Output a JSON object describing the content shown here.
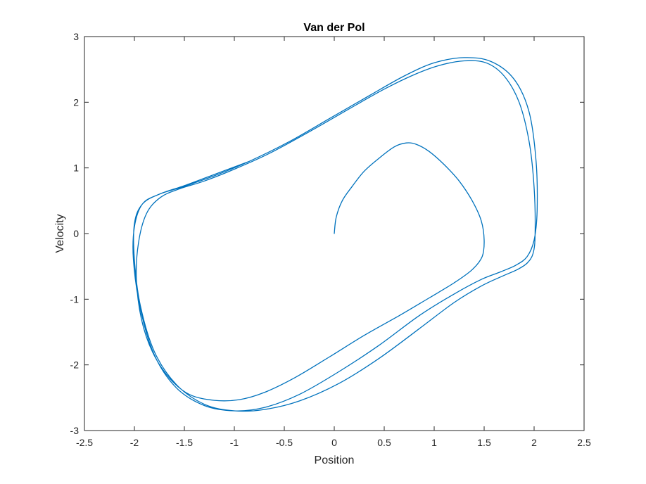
{
  "chart_data": {
    "type": "line",
    "title": "Van der Pol",
    "xlabel": "Position",
    "ylabel": "Velocity",
    "xlim": [
      -2.5,
      2.5
    ],
    "ylim": [
      -3,
      3
    ],
    "x_ticks": [
      -2.5,
      -2,
      -1.5,
      -1,
      -0.5,
      0,
      0.5,
      1,
      1.5,
      2,
      2.5
    ],
    "x_tick_labels": [
      "-2.5",
      "-2",
      "-1.5",
      "-1",
      "-0.5",
      "0",
      "0.5",
      "1",
      "1.5",
      "2",
      "2.5"
    ],
    "y_ticks": [
      -3,
      -2,
      -1,
      0,
      1,
      2,
      3
    ],
    "y_tick_labels": [
      "-3",
      "-2",
      "-1",
      "0",
      "1",
      "2",
      "3"
    ],
    "grid": false,
    "box": true,
    "series_color": "#0072BD",
    "series": [
      {
        "x": [
          0,
          0.02,
          0.08,
          0.18,
          0.3,
          0.45,
          0.6,
          0.72,
          0.82,
          0.95,
          1.1,
          1.25,
          1.38,
          1.47,
          1.5,
          1.48,
          1.38,
          1.2,
          0.95,
          0.65,
          0.3,
          -0.05,
          -0.4,
          -0.7,
          -0.95,
          -1.2,
          -1.45,
          -1.65,
          -1.82,
          -1.93,
          -1.98,
          -1.96,
          -1.88,
          -1.74,
          -1.55,
          -1.3,
          -1.0,
          -0.65,
          -0.25,
          0.15,
          0.5,
          0.8,
          1.05,
          1.3,
          1.52,
          1.7,
          1.85,
          1.95,
          2.0,
          2.01,
          1.99,
          1.93,
          1.83,
          1.68,
          1.47,
          1.2,
          0.85,
          0.45,
          0.05,
          -0.35,
          -0.7,
          -1.0,
          -1.3,
          -1.58,
          -1.8,
          -1.94,
          -2.0,
          -2.0,
          -1.92,
          -1.75,
          -1.5,
          -1.2,
          -0.85,
          -0.45,
          -0.05,
          0.35,
          0.7,
          1.0,
          1.3,
          1.57,
          1.8,
          1.95,
          2.02,
          2.03,
          2.0,
          1.93,
          1.82,
          1.67,
          1.47,
          1.2,
          0.85,
          0.45,
          0.05,
          -0.35,
          -0.7,
          -1.0,
          -1.3,
          -1.58,
          -1.8,
          -1.94,
          -2.01,
          -2.0,
          -1.92,
          -1.75,
          -1.5,
          -1.2,
          -0.85
        ],
        "y": [
          0,
          0.25,
          0.5,
          0.72,
          0.95,
          1.15,
          1.32,
          1.38,
          1.36,
          1.25,
          1.05,
          0.8,
          0.5,
          0.2,
          -0.1,
          -0.35,
          -0.55,
          -0.75,
          -0.98,
          -1.25,
          -1.55,
          -1.88,
          -2.2,
          -2.42,
          -2.53,
          -2.54,
          -2.45,
          -2.2,
          -1.8,
          -1.3,
          -0.7,
          -0.15,
          0.3,
          0.55,
          0.68,
          0.8,
          0.98,
          1.22,
          1.55,
          1.9,
          2.2,
          2.42,
          2.56,
          2.63,
          2.6,
          2.4,
          2.0,
          1.4,
          0.7,
          0.0,
          -0.3,
          -0.45,
          -0.55,
          -0.65,
          -0.8,
          -1.05,
          -1.45,
          -1.9,
          -2.28,
          -2.55,
          -2.68,
          -2.7,
          -2.6,
          -2.3,
          -1.8,
          -1.1,
          -0.4,
          0.15,
          0.45,
          0.6,
          0.72,
          0.88,
          1.1,
          1.4,
          1.75,
          2.1,
          2.4,
          2.6,
          2.68,
          2.62,
          2.35,
          1.85,
          1.1,
          0.35,
          -0.1,
          -0.35,
          -0.48,
          -0.58,
          -0.7,
          -0.92,
          -1.25,
          -1.7,
          -2.1,
          -2.45,
          -2.65,
          -2.7,
          -2.62,
          -2.35,
          -1.85,
          -1.15,
          -0.4,
          0.1,
          0.45,
          0.6,
          0.73,
          0.9,
          1.1
        ]
      }
    ]
  }
}
